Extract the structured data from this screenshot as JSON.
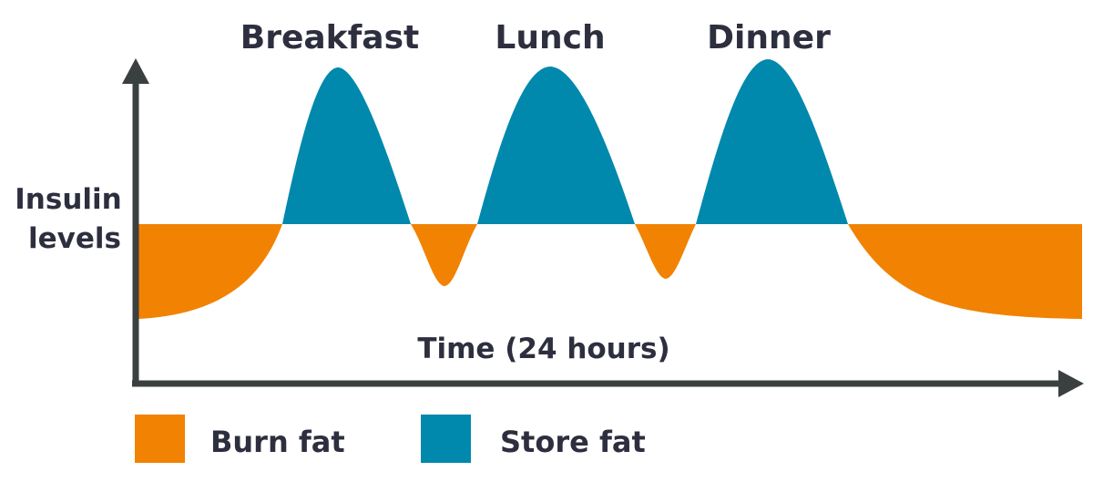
{
  "diagram": {
    "meals": [
      "Breakfast",
      "Lunch",
      "Dinner"
    ],
    "y_axis_label_lines": [
      "Insulin",
      "levels"
    ],
    "x_axis_label": "Time (24 hours)",
    "legend": [
      {
        "label": "Burn fat",
        "color": "#F28202"
      },
      {
        "label": "Store fat",
        "color": "#0088AD"
      }
    ],
    "colors": {
      "axis": "#3A3F40",
      "text": "#2D2F3F"
    }
  }
}
